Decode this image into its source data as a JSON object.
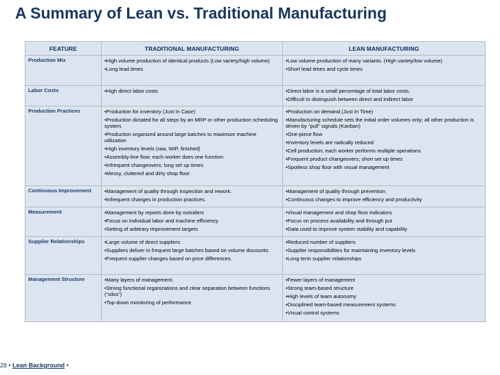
{
  "title": "A Summary of Lean vs. Traditional Manufacturing",
  "headers": {
    "feature": "FEATURE",
    "traditional": "TRADITIONAL MANUFACTURING",
    "lean": "LEAN MANUFACTURING"
  },
  "rows": [
    {
      "feature": "Production Mix",
      "traditional": [
        "•High volume production of identical products (Low variety/high volume)",
        "•Long lead times"
      ],
      "lean": [
        "•Low volume production of many variants. (High variety/low volume)",
        "•Short lead times and cycle times"
      ]
    },
    {
      "feature": "Labor Costs",
      "traditional": [
        "•High direct labor costs"
      ],
      "lean": [
        "•Direct labor is a small percentage of total labor costs.",
        "•Difficult to distinguish between direct and indirect labor"
      ]
    },
    {
      "feature": "Production Practices",
      "traditional": [
        "•Production for inventory (Just In Case)",
        "•Production dictated for all steps by an MRP or other production scheduling system.",
        "•Production organized around large batches to maximize machine utilization",
        "•High inventory levels (raw, WIP, finished)",
        "•Assembly-line flow; each worker does one function",
        "•Infrequent changeovers; long set up times",
        "•Messy, cluttered and dirty shop floor"
      ],
      "lean": [
        "•Production on demand (Just In Time)",
        "•Manufacturing schedule sets the initial order volumes only; all other production is driven by “pull” signals (Kanban)",
        "•One-piece flow",
        "•Inventory levels are radically reduced",
        "•Cell production; each worker performs multiple operations",
        "•Frequent product changeovers; short set up times",
        "•Spotless shop floor with visual management"
      ]
    },
    {
      "feature": "Continuous Improvement",
      "traditional": [
        "•Management of quality through inspection and rework.",
        "•Infrequent changes in production practices."
      ],
      "lean": [
        "•Management of quality through prevention.",
        "•Continuous changes to improve efficiency and productivity"
      ]
    },
    {
      "feature": "Measurement",
      "traditional": [
        "•Management by reports done by outsiders",
        "•Focus on individual labor and machine efficiency",
        "•Setting of arbitrary improvement targets"
      ],
      "lean": [
        "•Visual management and shop floor indicators",
        "•Focus  on process availability and through put",
        "•Data used to improve system stability and capability"
      ]
    },
    {
      "feature": "Supplier Relationships",
      "traditional": [
        "•Large volume of direct suppliers",
        "•Suppliers deliver in frequent large batches based on volume discounts.",
        "•Frequent supplier changes based on price differences."
      ],
      "lean": [
        "•Reduced number of suppliers",
        "•Supplier responsibilities for maintaining inventory levels",
        "•Long term supplier relationships"
      ]
    },
    {
      "feature": "Management Structure",
      "traditional": [
        "•Many layers of management.",
        "•Strong functional organizations and clear separation between functions (“silos”)",
        "•Top-down monitoring of performance."
      ],
      "lean": [
        "•Fewer layers of management",
        "•Strong team-based structure",
        "•High levels of team autonomy",
        "•Disciplined team-based measurement systems",
        "•Visual control systems"
      ]
    }
  ],
  "footer": {
    "page": "28",
    "sep1": " • ",
    "section": "Lean Background",
    "sep2": "  •"
  }
}
